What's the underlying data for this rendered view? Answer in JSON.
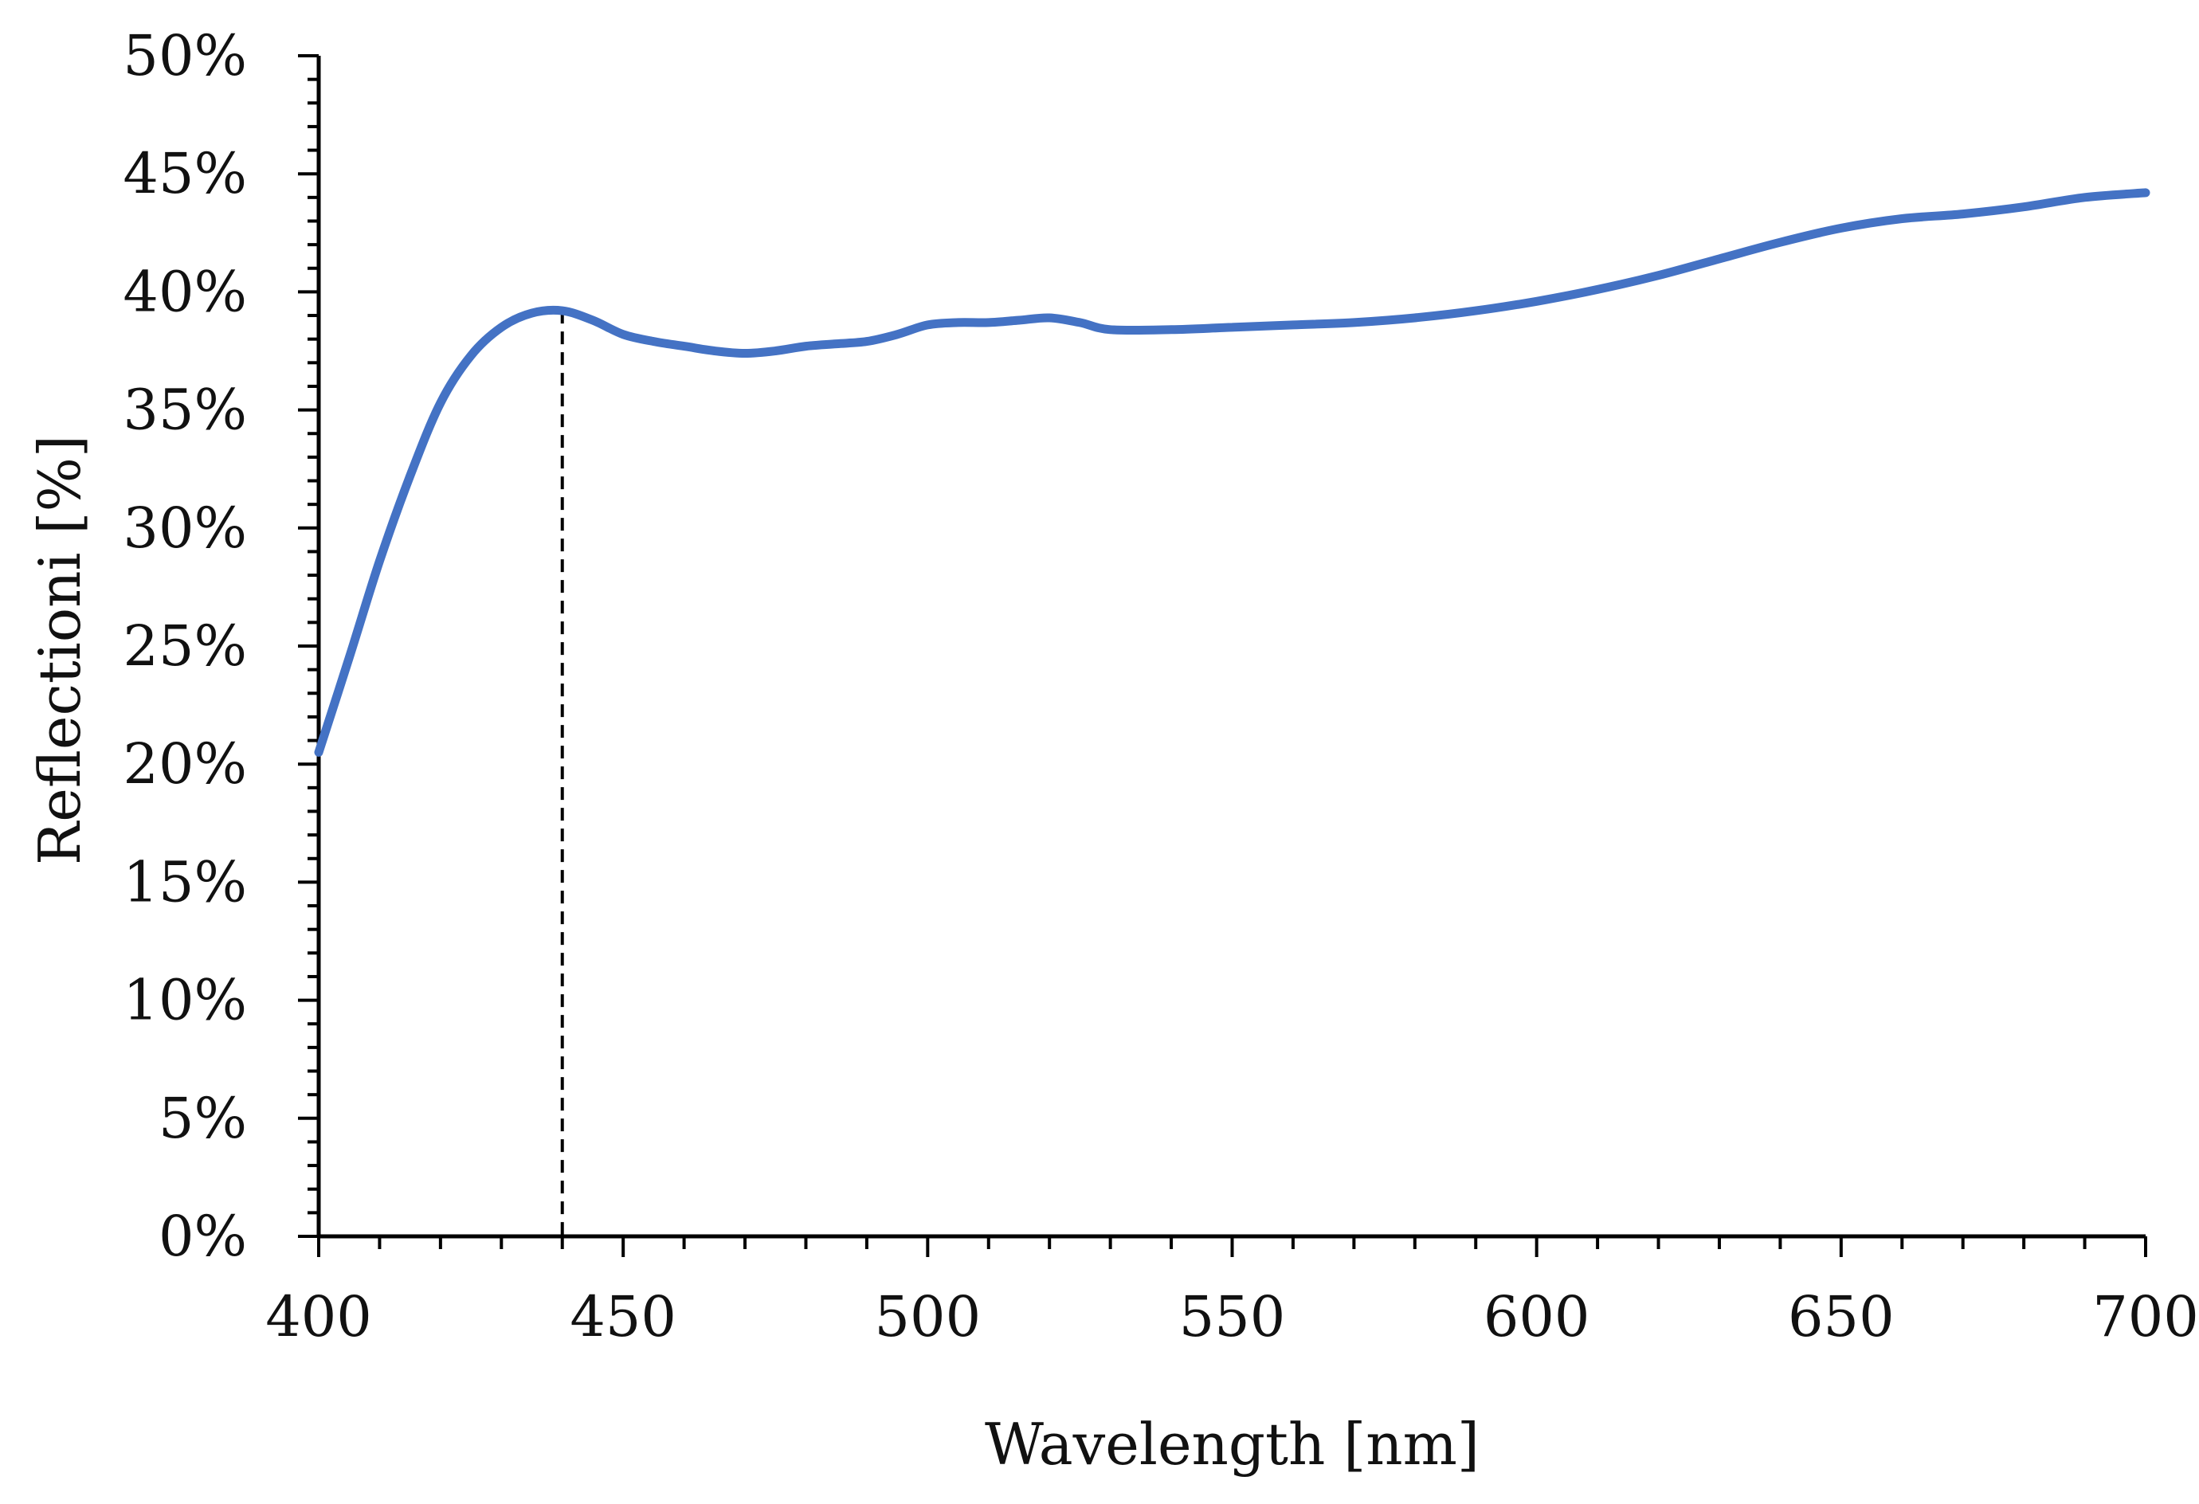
{
  "chart_data": {
    "type": "line",
    "title": "",
    "xlabel": "Wavelength [nm]",
    "ylabel": "Reflectioni [%]",
    "xlim": [
      400,
      700
    ],
    "ylim": [
      0,
      50
    ],
    "x_ticks": [
      400,
      450,
      500,
      550,
      600,
      650,
      700
    ],
    "x_tick_labels": [
      "400",
      "450",
      "500",
      "550",
      "600",
      "650",
      "700"
    ],
    "y_ticks": [
      0,
      5,
      10,
      15,
      20,
      25,
      30,
      35,
      40,
      45,
      50
    ],
    "y_tick_labels": [
      "0%",
      "5%",
      "10%",
      "15%",
      "20%",
      "25%",
      "30%",
      "35%",
      "40%",
      "45%",
      "50%"
    ],
    "x_minor_step": 10,
    "y_minor_step": 1,
    "grid": false,
    "legend": "none",
    "series": [
      {
        "name": "Reflection",
        "color": "#4472C4",
        "x": [
          400,
          405,
          410,
          415,
          420,
          425,
          430,
          435,
          440,
          445,
          450,
          455,
          460,
          465,
          470,
          475,
          480,
          485,
          490,
          495,
          500,
          505,
          510,
          515,
          520,
          525,
          530,
          540,
          550,
          560,
          570,
          580,
          590,
          600,
          610,
          620,
          630,
          640,
          650,
          660,
          670,
          680,
          690,
          700
        ],
        "values": [
          20.5,
          24.5,
          28.6,
          32.2,
          35.3,
          37.3,
          38.5,
          39.1,
          39.2,
          38.8,
          38.2,
          37.9,
          37.7,
          37.5,
          37.4,
          37.5,
          37.7,
          37.8,
          37.9,
          38.2,
          38.6,
          38.7,
          38.7,
          38.8,
          38.9,
          38.7,
          38.4,
          38.4,
          38.5,
          38.6,
          38.7,
          38.9,
          39.2,
          39.6,
          40.1,
          40.7,
          41.4,
          42.1,
          42.7,
          43.1,
          43.3,
          43.6,
          44.0,
          44.2
        ]
      }
    ],
    "annotations": [
      {
        "type": "vertical-dashed-line",
        "x": 440,
        "y_top": 39.2
      }
    ]
  }
}
